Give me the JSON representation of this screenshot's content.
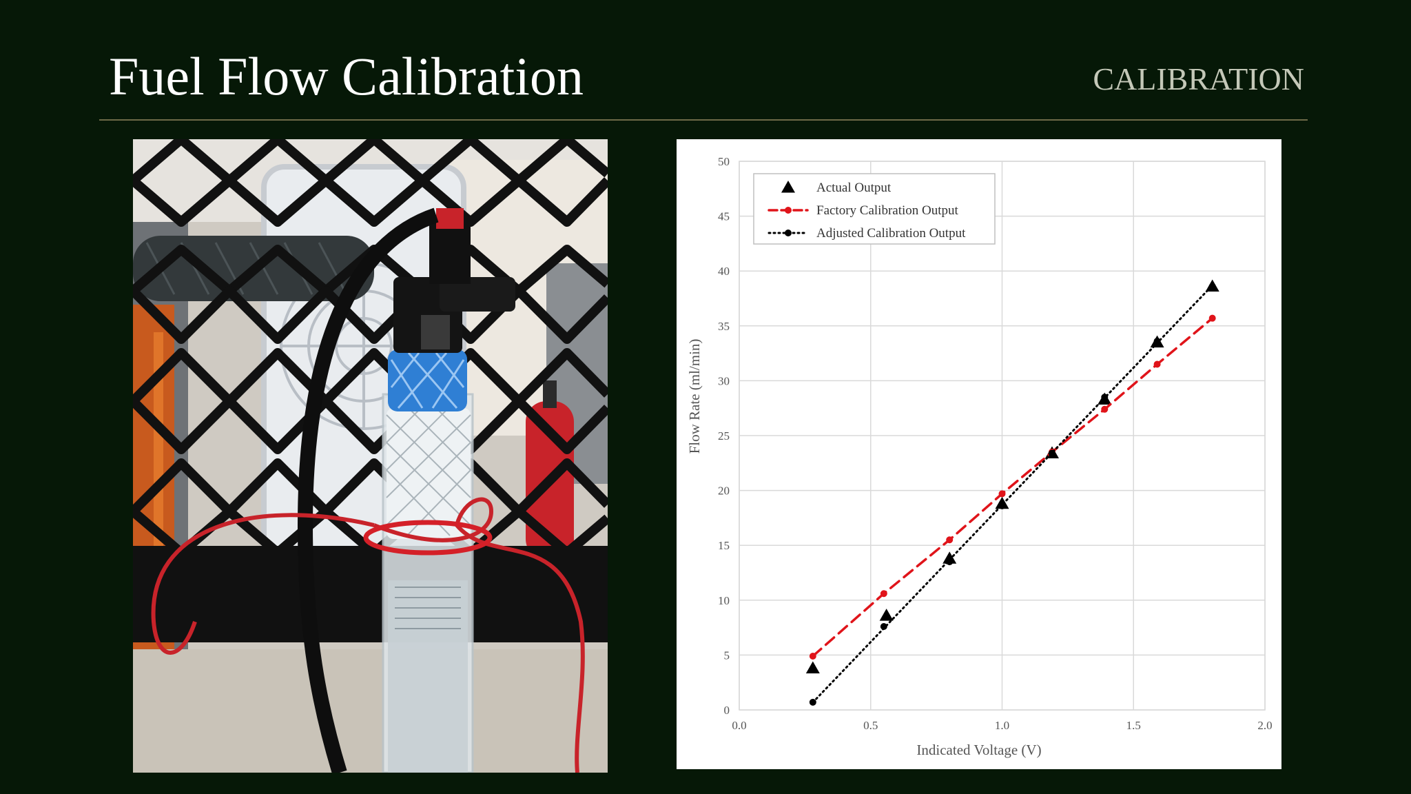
{
  "slide": {
    "title": "Fuel Flow Calibration",
    "section": "CALIBRATION"
  },
  "photo": {
    "description_icon": "fuel-injector-test-rig-photo"
  },
  "colors": {
    "background": "#061807",
    "factory_series": "#e0141a",
    "actual_series": "#000000",
    "adjusted_series": "#000000"
  },
  "chart_data": {
    "type": "scatter",
    "xlabel": "Indicated Voltage (V)",
    "ylabel": "Flow Rate (ml/min)",
    "xlim": [
      0.0,
      2.0
    ],
    "ylim": [
      0,
      50
    ],
    "xticks": [
      0.0,
      0.5,
      1.0,
      1.5,
      2.0
    ],
    "xtick_labels": [
      "0.0",
      "0.5",
      "1.0",
      "1.5",
      "2.0"
    ],
    "yticks": [
      0,
      5,
      10,
      15,
      20,
      25,
      30,
      35,
      40,
      45,
      50
    ],
    "ytick_labels": [
      "0",
      "5",
      "10",
      "15",
      "20",
      "25",
      "30",
      "35",
      "40",
      "45",
      "50"
    ],
    "grid": true,
    "legend_position": "top-left",
    "series": [
      {
        "name": "Actual Output",
        "marker": "triangle",
        "line": "none",
        "points": [
          [
            0.28,
            3.8
          ],
          [
            0.56,
            8.6
          ],
          [
            0.8,
            13.8
          ],
          [
            1.0,
            18.8
          ],
          [
            1.19,
            23.4
          ],
          [
            1.39,
            28.3
          ],
          [
            1.59,
            33.5
          ],
          [
            1.8,
            38.6
          ]
        ]
      },
      {
        "name": "Factory Calibration Output",
        "marker": "circle",
        "line": "dashed",
        "points": [
          [
            0.28,
            4.9
          ],
          [
            0.55,
            10.6
          ],
          [
            0.8,
            15.5
          ],
          [
            1.0,
            19.7
          ],
          [
            1.19,
            23.5
          ],
          [
            1.39,
            27.4
          ],
          [
            1.59,
            31.5
          ],
          [
            1.8,
            35.7
          ]
        ]
      },
      {
        "name": "Adjusted Calibration Output",
        "marker": "dot",
        "line": "dotted",
        "points": [
          [
            0.28,
            0.7
          ],
          [
            0.55,
            7.6
          ],
          [
            0.8,
            13.5
          ],
          [
            1.0,
            18.6
          ],
          [
            1.19,
            23.4
          ],
          [
            1.39,
            28.5
          ],
          [
            1.59,
            33.6
          ],
          [
            1.8,
            38.6
          ]
        ]
      }
    ]
  }
}
